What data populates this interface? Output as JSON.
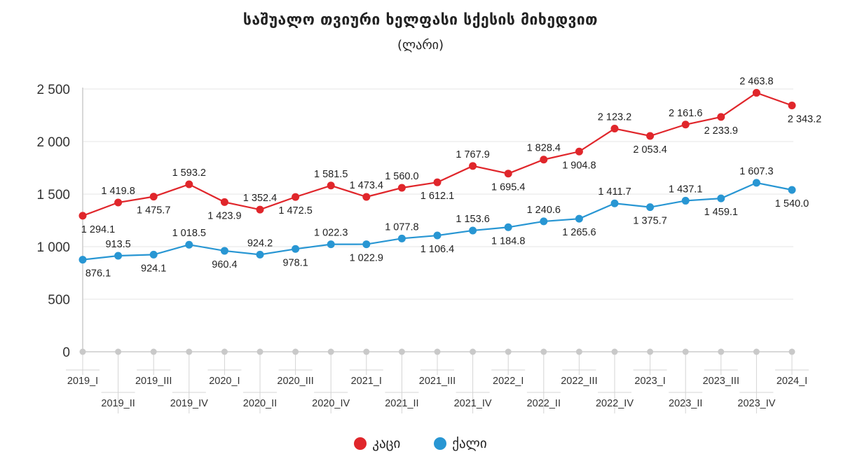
{
  "chart_data": {
    "type": "line",
    "title": "საშუალო თვიური ხელფასი სქესის მიხედვით",
    "subtitle": "(ლარი)",
    "xlabel": "",
    "ylabel": "",
    "ylim": [
      0,
      2500
    ],
    "yticks": [
      {
        "value": 0,
        "label": "0"
      },
      {
        "value": 500,
        "label": "500"
      },
      {
        "value": 1000,
        "label": "1 000"
      },
      {
        "value": 1500,
        "label": "1 500"
      },
      {
        "value": 2000,
        "label": "2 000"
      },
      {
        "value": 2500,
        "label": "2 500"
      }
    ],
    "categories": [
      "2019_I",
      "2019_II",
      "2019_III",
      "2019_IV",
      "2020_I",
      "2020_II",
      "2020_III",
      "2020_IV",
      "2021_I",
      "2021_II",
      "2021_III",
      "2021_IV",
      "2022_I",
      "2022_II",
      "2022_III",
      "2022_IV",
      "2023_I",
      "2023_II",
      "2023_III",
      "2023_IV",
      "2024_I"
    ],
    "grid": true,
    "legend_position": "bottom-center",
    "series": [
      {
        "name": "კაცი",
        "color": "#e0262b",
        "values": [
          1294.1,
          1419.8,
          1475.7,
          1593.2,
          1423.9,
          1352.4,
          1472.5,
          1581.5,
          1473.4,
          1560.0,
          1612.1,
          1767.9,
          1695.4,
          1828.4,
          1904.8,
          2123.2,
          2053.4,
          2161.6,
          2233.9,
          2463.8,
          2343.2
        ],
        "labels": [
          "1 294.1",
          "1 419.8",
          "1 475.7",
          "1 593.2",
          "1 423.9",
          "1 352.4",
          "1 472.5",
          "1 581.5",
          "1 473.4",
          "1 560.0",
          "1 612.1",
          "1 767.9",
          "1 695.4",
          "1 828.4",
          "1 904.8",
          "2 123.2",
          "2 053.4",
          "2 161.6",
          "2 233.9",
          "2 463.8",
          "2 343.2"
        ]
      },
      {
        "name": "ქალი",
        "color": "#2896d3",
        "values": [
          876.1,
          913.5,
          924.1,
          1018.5,
          960.4,
          924.2,
          978.1,
          1022.3,
          1022.9,
          1077.8,
          1106.4,
          1153.6,
          1184.8,
          1240.6,
          1265.6,
          1411.7,
          1375.7,
          1437.1,
          1459.1,
          1607.3,
          1540.0
        ],
        "labels": [
          "876.1",
          "913.5",
          "924.1",
          "1 018.5",
          "960.4",
          "924.2",
          "978.1",
          "1 022.3",
          "1 022.9",
          "1 077.8",
          "1 106.4",
          "1 153.6",
          "1 184.8",
          "1 240.6",
          "1 265.6",
          "1 411.7",
          "1 375.7",
          "1 437.1",
          "1 459.1",
          "1 607.3",
          "1 540.0"
        ]
      }
    ]
  }
}
